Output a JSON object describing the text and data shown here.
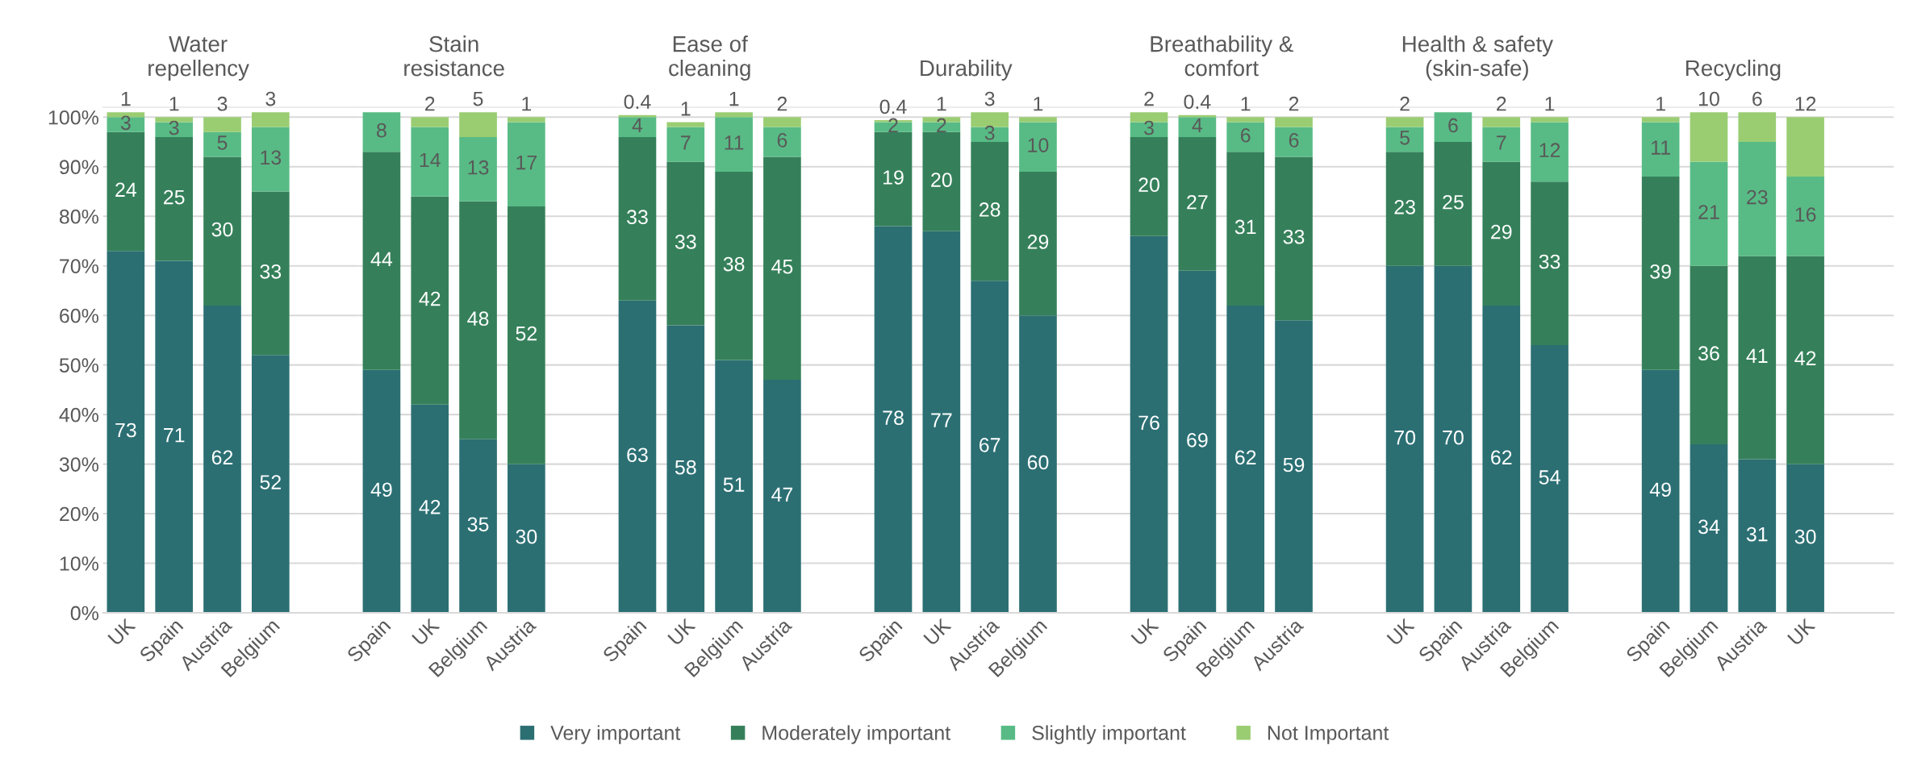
{
  "chart_data": [
    {
      "type": "bar",
      "stacked": true,
      "title": "Water\nrepellency",
      "categories": [
        "UK",
        "Spain",
        "Austria",
        "Belgium"
      ],
      "ylim": [
        0,
        102
      ],
      "yticks": [
        {
          "value": 0,
          "label": "0%"
        },
        {
          "value": 10,
          "label": "10%"
        },
        {
          "value": 20,
          "label": "20%"
        },
        {
          "value": 30,
          "label": "30%"
        },
        {
          "value": 40,
          "label": "40%"
        },
        {
          "value": 50,
          "label": "50%"
        },
        {
          "value": 60,
          "label": "60%"
        },
        {
          "value": 70,
          "label": "70%"
        },
        {
          "value": 80,
          "label": "80%"
        },
        {
          "value": 90,
          "label": "90%"
        },
        {
          "value": 100,
          "label": "100%"
        }
      ],
      "grid": "y",
      "data_labels": true,
      "legend": "bottom",
      "series": [
        {
          "name": "Very important",
          "color": "#2b6f73",
          "values": [
            73,
            71,
            62,
            52
          ]
        },
        {
          "name": "Moderately important",
          "color": "#35805a",
          "values": [
            24,
            25,
            30,
            33
          ]
        },
        {
          "name": "Slightly important",
          "color": "#58bb85",
          "values": [
            3,
            3,
            5,
            13
          ]
        },
        {
          "name": "Not Important",
          "color": "#9acd72",
          "values": [
            1,
            1,
            3,
            3
          ]
        }
      ]
    },
    {
      "type": "bar",
      "stacked": true,
      "title": "Stain\nresistance",
      "categories": [
        "Spain",
        "UK",
        "Belgium",
        "Austria"
      ],
      "ylim": [
        0,
        102
      ],
      "tick_labels": "x",
      "grid": "y",
      "data_labels": true,
      "series": [
        {
          "color": "#2b6f73",
          "values": [
            49,
            42,
            35,
            30
          ]
        },
        {
          "color": "#35805a",
          "values": [
            44,
            42,
            48,
            52
          ]
        },
        {
          "color": "#58bb85",
          "values": [
            8,
            14,
            13,
            17
          ]
        },
        {
          "color": "#9acd72",
          "values": [
            null,
            2,
            5,
            1
          ]
        }
      ]
    },
    {
      "type": "bar",
      "stacked": true,
      "title": "Ease of\ncleaning",
      "categories": [
        "Spain",
        "UK",
        "Belgium",
        "Austria"
      ],
      "ylim": [
        0,
        102
      ],
      "tick_labels": "x",
      "grid": "y",
      "data_labels": true,
      "series": [
        {
          "color": "#2b6f73",
          "values": [
            63,
            58,
            51,
            47
          ]
        },
        {
          "color": "#35805a",
          "values": [
            33,
            33,
            38,
            45
          ]
        },
        {
          "color": "#58bb85",
          "values": [
            4,
            7,
            11,
            6
          ]
        },
        {
          "color": "#9acd72",
          "values": [
            0.4,
            1,
            1,
            2
          ]
        }
      ]
    },
    {
      "type": "bar",
      "stacked": true,
      "title": "Durability",
      "categories": [
        "Spain",
        "UK",
        "Austria",
        "Belgium"
      ],
      "ylim": [
        0,
        102
      ],
      "tick_labels": "x",
      "grid": "y",
      "data_labels": true,
      "series": [
        {
          "color": "#2b6f73",
          "values": [
            78,
            77,
            67,
            60
          ]
        },
        {
          "color": "#35805a",
          "values": [
            19,
            20,
            28,
            29
          ]
        },
        {
          "color": "#58bb85",
          "values": [
            2,
            2,
            3,
            10
          ]
        },
        {
          "color": "#9acd72",
          "values": [
            0.4,
            1,
            3,
            1
          ]
        }
      ]
    },
    {
      "type": "bar",
      "stacked": true,
      "title": "Breathability &\ncomfort",
      "categories": [
        "UK",
        "Spain",
        "Belgium",
        "Austria"
      ],
      "ylim": [
        0,
        102
      ],
      "tick_labels": "x",
      "grid": "y",
      "data_labels": true,
      "series": [
        {
          "color": "#2b6f73",
          "values": [
            76,
            69,
            62,
            59
          ]
        },
        {
          "color": "#35805a",
          "values": [
            20,
            27,
            31,
            33
          ]
        },
        {
          "color": "#58bb85",
          "values": [
            3,
            4,
            6,
            6
          ]
        },
        {
          "color": "#9acd72",
          "values": [
            2,
            0.4,
            1,
            2
          ]
        }
      ]
    },
    {
      "type": "bar",
      "stacked": true,
      "title": "Health & safety\n(skin-safe)",
      "categories": [
        "UK",
        "Spain",
        "Austria",
        "Belgium"
      ],
      "ylim": [
        0,
        102
      ],
      "tick_labels": "x",
      "grid": "y",
      "data_labels": true,
      "series": [
        {
          "color": "#2b6f73",
          "values": [
            70,
            70,
            62,
            54
          ]
        },
        {
          "color": "#35805a",
          "values": [
            23,
            25,
            29,
            33
          ]
        },
        {
          "color": "#58bb85",
          "values": [
            5,
            6,
            7,
            12
          ]
        },
        {
          "color": "#9acd72",
          "values": [
            2,
            null,
            2,
            1
          ]
        }
      ]
    },
    {
      "type": "bar",
      "stacked": true,
      "title": "Recycling",
      "categories": [
        "Spain",
        "Belgium",
        "Austria",
        "UK"
      ],
      "ylim": [
        0,
        102
      ],
      "tick_labels": "x",
      "grid": "y",
      "data_labels": true,
      "series": [
        {
          "color": "#2b6f73",
          "values": [
            49,
            34,
            31,
            30
          ]
        },
        {
          "color": "#35805a",
          "values": [
            39,
            36,
            41,
            42
          ]
        },
        {
          "color": "#58bb85",
          "values": [
            11,
            21,
            23,
            16
          ]
        },
        {
          "color": "#9acd72",
          "values": [
            1,
            10,
            6,
            12
          ]
        }
      ]
    }
  ]
}
